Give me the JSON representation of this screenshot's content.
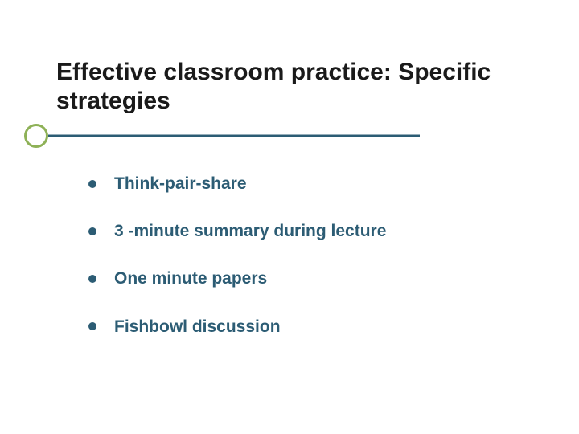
{
  "title": "Effective classroom practice: Specific strategies",
  "title_color": "#1a1a1a",
  "title_fontsize": 30,
  "accent_line_color": "#2c5c74",
  "accent_circle_color": "#8eb157",
  "bullet_color": "#2c5c74",
  "bullet_text_color": "#2c5c74",
  "bullet_fontsize": 21,
  "background_color": "#ffffff",
  "bullets": [
    "Think-pair-share",
    "3 -minute summary during lecture",
    "One minute papers",
    "Fishbowl discussion"
  ]
}
